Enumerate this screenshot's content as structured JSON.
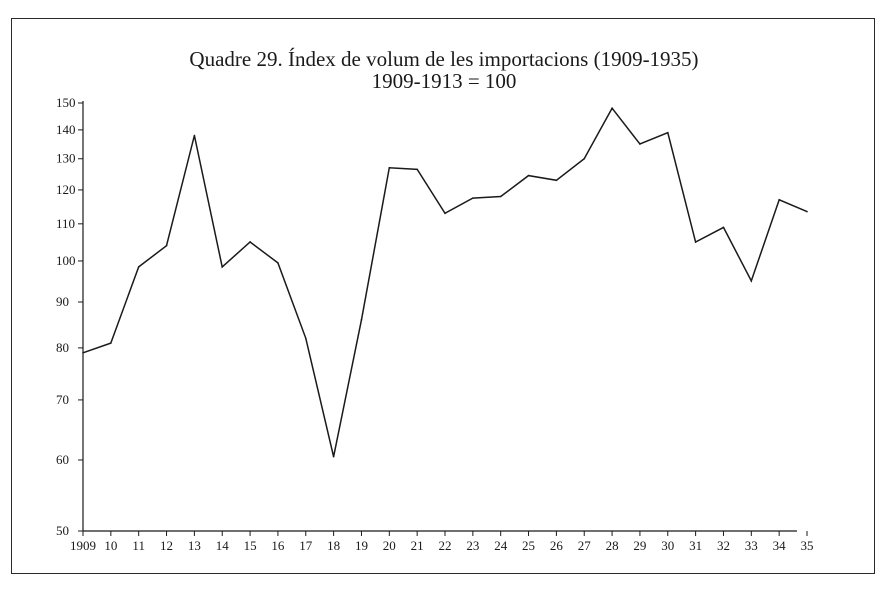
{
  "chart_data": {
    "type": "line",
    "title": "Quadre 29. Índex de volum de les importacions (1909-1935)",
    "subtitle": "1909-1913 = 100",
    "xlabel": "",
    "ylabel": "",
    "y_scale": "log",
    "ylim": [
      50,
      150
    ],
    "y_ticks": [
      50,
      60,
      70,
      80,
      90,
      100,
      110,
      120,
      130,
      140,
      150
    ],
    "grid": false,
    "categories": [
      "1909",
      "10",
      "11",
      "12",
      "13",
      "14",
      "15",
      "16",
      "17",
      "18",
      "19",
      "20",
      "21",
      "22",
      "23",
      "24",
      "25",
      "26",
      "27",
      "28",
      "29",
      "30",
      "31",
      "32",
      "33",
      "34",
      "35"
    ],
    "series": [
      {
        "values": [
          79,
          81,
          98.5,
          104,
          138,
          98.5,
          105,
          99.5,
          82,
          60.5,
          86,
          127,
          126.5,
          113,
          117.5,
          118,
          124.5,
          123,
          130,
          148,
          135,
          139,
          105,
          109,
          95,
          117,
          113.5
        ]
      }
    ]
  },
  "colors": {
    "line": "#1a1a1a",
    "axis": "#1a1a1a",
    "frame": "#2a2a2a"
  }
}
